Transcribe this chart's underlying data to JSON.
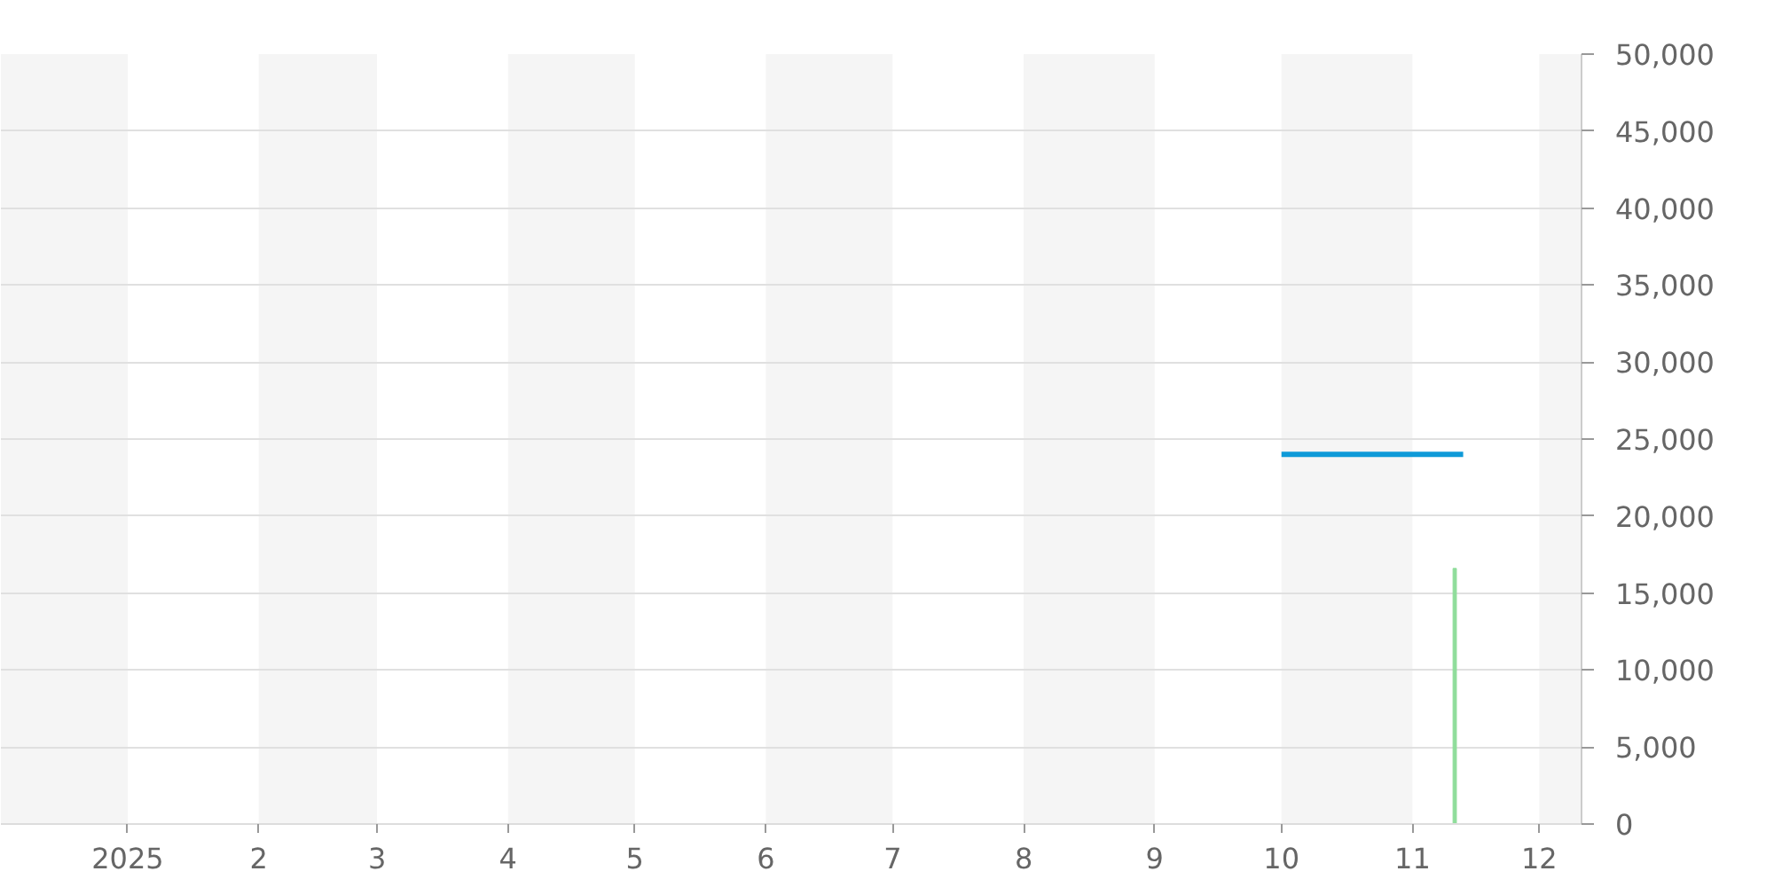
{
  "chart_data": {
    "type": "line",
    "xlim": [
      "2024-12-02",
      "2025-12-11"
    ],
    "xticks": [
      {
        "value": "2025-01-01",
        "label": "2025"
      },
      {
        "value": "2025-02-01",
        "label": "2"
      },
      {
        "value": "2025-03-01",
        "label": "3"
      },
      {
        "value": "2025-04-01",
        "label": "4"
      },
      {
        "value": "2025-05-01",
        "label": "5"
      },
      {
        "value": "2025-06-01",
        "label": "6"
      },
      {
        "value": "2025-07-01",
        "label": "7"
      },
      {
        "value": "2025-08-01",
        "label": "8"
      },
      {
        "value": "2025-09-01",
        "label": "9"
      },
      {
        "value": "2025-10-01",
        "label": "10"
      },
      {
        "value": "2025-11-01",
        "label": "11"
      },
      {
        "value": "2025-12-01",
        "label": "12"
      }
    ],
    "ylim": [
      0,
      50000
    ],
    "yticks": [
      0,
      {
        "value": 5000,
        "label": "5,000"
      },
      {
        "value": 10000,
        "label": "10,000"
      },
      {
        "value": 15000,
        "label": "15,000"
      },
      {
        "value": 20000,
        "label": "20,000"
      },
      {
        "value": 25000,
        "label": "25,000"
      },
      {
        "value": 30000,
        "label": "30,000"
      },
      {
        "value": 35000,
        "label": "35,000"
      },
      {
        "value": 40000,
        "label": "40,000"
      },
      {
        "value": 45000,
        "label": "45,000"
      },
      {
        "value": 50000,
        "label": "50,000"
      }
    ],
    "grid": "y",
    "series": [
      {
        "color": "#0f9ad8",
        "x": [
          "2025-10-01",
          "2025-11-13"
        ],
        "values": [
          24000,
          24000
        ]
      },
      {
        "type": "bar",
        "color": "#8fdd9b",
        "x": [
          "2025-11-11"
        ],
        "values": [
          16600
        ]
      }
    ],
    "bands": [
      {
        "axis": "x",
        "from": "2024-12-02",
        "to": "2025-01-01",
        "color": "#f5f5f5"
      },
      {
        "axis": "x",
        "from": "2025-02-01",
        "to": "2025-03-01",
        "color": "#f5f5f5"
      },
      {
        "axis": "x",
        "from": "2025-04-01",
        "to": "2025-05-01",
        "color": "#f5f5f5"
      },
      {
        "axis": "x",
        "from": "2025-06-01",
        "to": "2025-07-01",
        "color": "#f5f5f5"
      },
      {
        "axis": "x",
        "from": "2025-08-01",
        "to": "2025-09-01",
        "color": "#f5f5f5"
      },
      {
        "axis": "x",
        "from": "2025-10-01",
        "to": "2025-11-01",
        "color": "#f5f5f5"
      },
      {
        "axis": "x",
        "from": "2025-12-01",
        "to": "2025-12-11",
        "color": "#f5f5f5"
      }
    ]
  }
}
